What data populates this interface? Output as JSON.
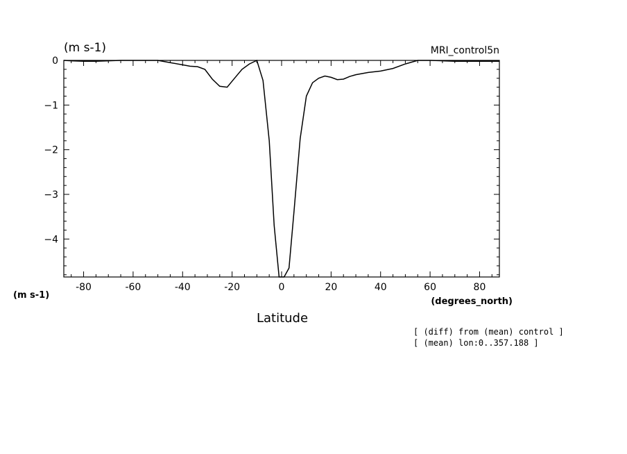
{
  "chart_data": {
    "type": "line",
    "title": "(m s-1)",
    "dataset_label": "MRI_control5n",
    "xlabel": "Latitude",
    "xunits": "(degrees_north)",
    "yunits": "(m s-1)",
    "xlim": [
      -88,
      88
    ],
    "ylim": [
      -4.85,
      0
    ],
    "xticks": [
      -80,
      -60,
      -40,
      -20,
      0,
      20,
      40,
      60,
      80
    ],
    "xtick_labels": [
      "-80",
      "-60",
      "-40",
      "-20",
      "0",
      "20",
      "40",
      "60",
      "80"
    ],
    "yticks": [
      0,
      -1,
      -2,
      -3,
      -4
    ],
    "ytick_labels": [
      "0",
      "-1",
      "-2",
      "-3",
      "-4"
    ],
    "grid": false,
    "notes": [
      "[ (diff) from (mean) control ]",
      "[ (mean) lon:0..357.188 ]"
    ],
    "series": [
      {
        "x": [
          -88,
          -85,
          -80,
          -75,
          -70,
          -65,
          -60,
          -55,
          -50,
          -45,
          -40,
          -37,
          -34,
          -31,
          -28,
          -25,
          -22,
          -19,
          -16,
          -13,
          -10,
          -7.5,
          -5,
          -3,
          -1,
          1,
          3,
          5,
          7.5,
          10,
          12.5,
          15,
          17.5,
          20,
          22.5,
          25,
          27.5,
          30,
          35,
          40,
          45,
          50,
          55,
          60,
          65,
          70,
          75,
          80,
          85,
          88
        ],
        "y": [
          0.0,
          -0.01,
          -0.02,
          -0.02,
          -0.01,
          0.0,
          0.0,
          0.0,
          0.0,
          -0.05,
          -0.1,
          -0.13,
          -0.14,
          -0.2,
          -0.42,
          -0.58,
          -0.6,
          -0.4,
          -0.2,
          -0.08,
          0.0,
          -0.45,
          -1.8,
          -3.7,
          -4.85,
          -4.9,
          -4.65,
          -3.4,
          -1.75,
          -0.8,
          -0.5,
          -0.4,
          -0.35,
          -0.38,
          -0.43,
          -0.42,
          -0.36,
          -0.32,
          -0.27,
          -0.24,
          -0.18,
          -0.08,
          0.0,
          0.0,
          -0.01,
          -0.02,
          -0.02,
          -0.02,
          -0.02,
          -0.02
        ]
      }
    ]
  }
}
